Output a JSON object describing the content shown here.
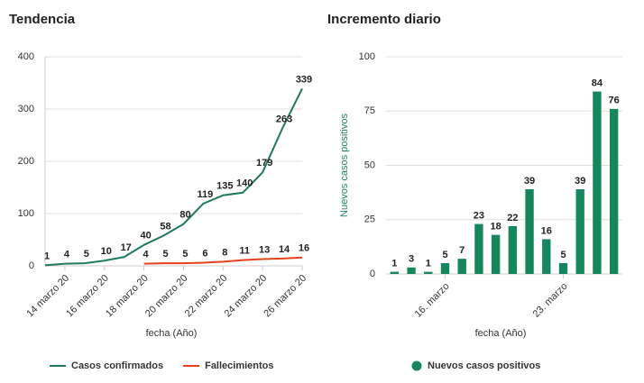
{
  "chart_data": [
    {
      "type": "line",
      "title": "Tendencia",
      "xlabel": "fecha (Año)",
      "categories": [
        null,
        "14 marzo 20",
        null,
        "16 marzo 20",
        null,
        "18 marzo 20",
        null,
        "20 marzo 20",
        null,
        "22 marzo 20",
        null,
        "24 marzo 20",
        null,
        "26 marzo 20"
      ],
      "series": [
        {
          "name": "Casos confirmados",
          "color": "#1f7a57",
          "values": [
            1,
            4,
            5,
            10,
            17,
            40,
            58,
            80,
            119,
            135,
            140,
            179,
            263,
            339
          ]
        },
        {
          "name": "Fallecimientos",
          "color": "#e8401c",
          "values": [
            null,
            null,
            null,
            null,
            null,
            4,
            5,
            5,
            6,
            8,
            11,
            13,
            14,
            16
          ]
        }
      ],
      "ylim": [
        0,
        400
      ],
      "yticks": [
        0,
        100,
        200,
        300,
        400
      ],
      "grid": true
    },
    {
      "type": "bar",
      "title": "Incremento diario",
      "xlabel": "fecha (Año)",
      "ylabel": "Nuevos casos positivos",
      "categories": [
        null,
        null,
        null,
        "16. marzo",
        null,
        null,
        null,
        null,
        null,
        null,
        "23. marzo",
        null,
        null,
        null
      ],
      "series": [
        {
          "name": "Nuevos casos positivos",
          "color": "#16875d",
          "values": [
            1,
            3,
            1,
            5,
            7,
            23,
            18,
            22,
            39,
            16,
            5,
            39,
            84,
            76
          ]
        }
      ],
      "ylim": [
        0,
        100
      ],
      "yticks": [
        0,
        25,
        50,
        75,
        100
      ],
      "grid": true
    }
  ]
}
